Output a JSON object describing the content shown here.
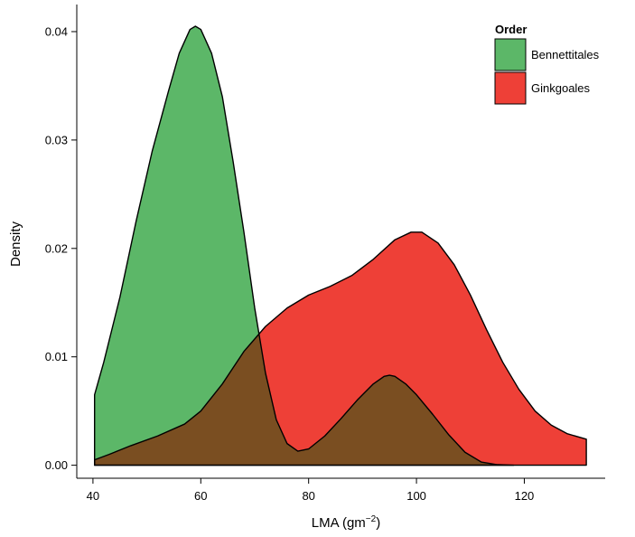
{
  "chart_data": {
    "type": "area",
    "xlabel": "LMA (gm",
    "xlabel_sup": "−2",
    "xlabel_close": ")",
    "ylabel": "Density",
    "xlim": [
      37,
      135
    ],
    "ylim": [
      -0.0012,
      0.0425
    ],
    "x_ticks": [
      40,
      60,
      80,
      100,
      120
    ],
    "y_ticks": [
      0.0,
      0.01,
      0.02,
      0.03,
      0.04
    ],
    "y_tick_labels": [
      "0.00",
      "0.01",
      "0.02",
      "0.03",
      "0.04"
    ],
    "grid": false,
    "legend": {
      "title": "Order",
      "placement": "top-right",
      "entries": [
        {
          "name": "Bennettitales",
          "color": "#5cb768"
        },
        {
          "name": "Ginkgoales",
          "color": "#ee4037"
        }
      ]
    },
    "overlap_color": "#7a4e21",
    "series": [
      {
        "name": "Bennettitales",
        "color": "#5cb768",
        "points": [
          [
            40.3,
            0.0065
          ],
          [
            42,
            0.0095
          ],
          [
            45,
            0.0155
          ],
          [
            48,
            0.0225
          ],
          [
            51,
            0.029
          ],
          [
            54,
            0.0345
          ],
          [
            56,
            0.038
          ],
          [
            58,
            0.0402
          ],
          [
            59,
            0.0405
          ],
          [
            60,
            0.0402
          ],
          [
            62,
            0.038
          ],
          [
            64,
            0.034
          ],
          [
            66,
            0.028
          ],
          [
            68,
            0.0215
          ],
          [
            70,
            0.0145
          ],
          [
            72,
            0.0085
          ],
          [
            74,
            0.0042
          ],
          [
            76,
            0.002
          ],
          [
            78,
            0.0013
          ],
          [
            80,
            0.0015
          ],
          [
            83,
            0.0027
          ],
          [
            86,
            0.0043
          ],
          [
            89,
            0.006
          ],
          [
            92,
            0.0075
          ],
          [
            94,
            0.0082
          ],
          [
            95,
            0.0083
          ],
          [
            96,
            0.0082
          ],
          [
            98,
            0.0075
          ],
          [
            100,
            0.0065
          ],
          [
            103,
            0.0047
          ],
          [
            106,
            0.0028
          ],
          [
            109,
            0.0012
          ],
          [
            112,
            0.0003
          ],
          [
            115,
            5e-05
          ],
          [
            118,
            0
          ]
        ]
      },
      {
        "name": "Ginkgoales",
        "color": "#ee4037",
        "points": [
          [
            40.3,
            0.0005
          ],
          [
            43,
            0.001
          ],
          [
            47,
            0.0018
          ],
          [
            52,
            0.0027
          ],
          [
            57,
            0.0038
          ],
          [
            60,
            0.005
          ],
          [
            64,
            0.0075
          ],
          [
            68,
            0.0105
          ],
          [
            72,
            0.0128
          ],
          [
            76,
            0.0145
          ],
          [
            80,
            0.0157
          ],
          [
            84,
            0.0165
          ],
          [
            88,
            0.0175
          ],
          [
            92,
            0.019
          ],
          [
            96,
            0.0208
          ],
          [
            99,
            0.0215
          ],
          [
            101,
            0.0215
          ],
          [
            104,
            0.0205
          ],
          [
            107,
            0.0185
          ],
          [
            110,
            0.0157
          ],
          [
            113,
            0.0125
          ],
          [
            116,
            0.0095
          ],
          [
            119,
            0.007
          ],
          [
            122,
            0.005
          ],
          [
            125,
            0.0037
          ],
          [
            128,
            0.0029
          ],
          [
            131.5,
            0.0024
          ]
        ]
      }
    ]
  }
}
